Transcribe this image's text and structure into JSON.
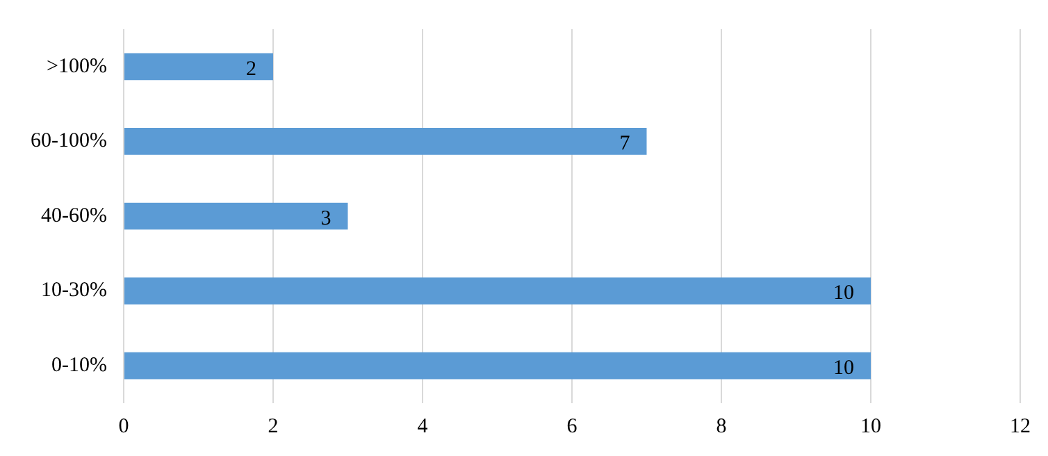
{
  "chart_data": {
    "type": "bar",
    "orientation": "horizontal",
    "categories": [
      ">100%",
      "60-100%",
      "40-60%",
      "10-30%",
      "0-10%"
    ],
    "values": [
      2,
      7,
      3,
      10,
      10
    ],
    "color": "#5b9bd5",
    "xlim": [
      0,
      12
    ],
    "xticks": [
      0,
      2,
      4,
      6,
      8,
      10,
      12
    ],
    "grid": "x",
    "data_labels": true,
    "legend": false
  }
}
